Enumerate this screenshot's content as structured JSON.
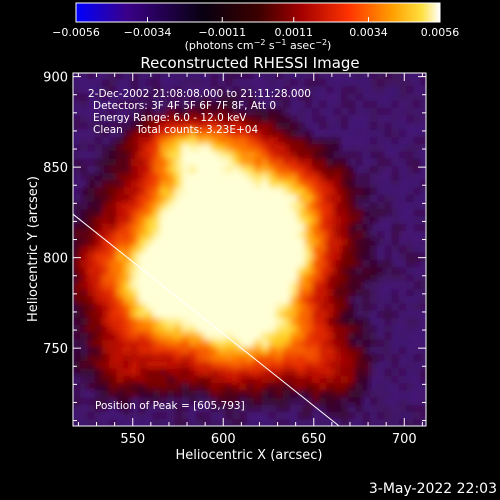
{
  "chart_data": {
    "type": "heatmap",
    "title": "Reconstructed RHESSI Image",
    "colorbar": {
      "ticks": [
        -0.0056,
        -0.0034,
        -0.0011,
        0.0011,
        0.0034,
        0.0056
      ],
      "tick_labels": [
        "−0.0056",
        "−0.0034",
        "−0.0011",
        "0.0011",
        "0.0034",
        "0.0056"
      ],
      "unit_prefix": "(photons cm",
      "unit_exp1": "−2",
      "unit_mid": " s",
      "unit_exp2": "−1",
      "unit_mid2": " asec",
      "unit_exp3": "−2",
      "unit_suffix": ")",
      "range": [
        -0.0056,
        0.0056
      ],
      "colormap": [
        "#0000ff",
        "#2a0080",
        "#000000",
        "#6a0000",
        "#cc1100",
        "#ff6a00",
        "#ffd000",
        "#ffffff"
      ]
    },
    "xlabel": "Heliocentric X (arcsec)",
    "ylabel": "Heliocentric Y (arcsec)",
    "xlim": [
      517,
      712
    ],
    "ylim": [
      707,
      902
    ],
    "xticks": [
      550,
      600,
      650,
      700
    ],
    "yticks": [
      750,
      800,
      850,
      900
    ],
    "annotations": [
      "2-Dec-2002 21:08:08.000 to 21:11:28.000",
      "Detectors: 3F 4F 5F 6F 7F 8F, Att 0",
      "Energy Range: 6.0 - 12.0 keV",
      "Clean    Total counts: 3.23E+04"
    ],
    "peak_label": "Position of Peak = [605,793]",
    "peak": [
      605,
      793
    ],
    "limb_line": [
      [
        517,
        824
      ],
      [
        664,
        707
      ]
    ],
    "grid": false,
    "legend": "none"
  },
  "timestamp": "3-May-2022 22:03",
  "colors": {
    "background": "#000000",
    "foreground": "#ffffff"
  }
}
